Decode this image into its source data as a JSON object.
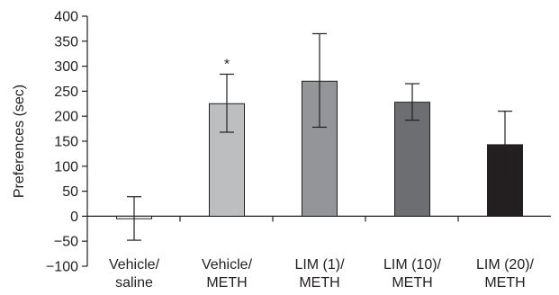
{
  "chart_data": {
    "type": "bar",
    "title": "",
    "xlabel": "",
    "ylabel": "Preferences (sec)",
    "ylim": [
      -100,
      400
    ],
    "yticks": [
      -100,
      -50,
      0,
      50,
      100,
      150,
      200,
      250,
      300,
      350,
      400
    ],
    "yticklabels": [
      "−100",
      "−50",
      "0",
      "50",
      "100",
      "150",
      "200",
      "250",
      "300",
      "350",
      "400"
    ],
    "grid": false,
    "legend": "none",
    "categories": [
      [
        "Vehicle/",
        "saline"
      ],
      [
        "Vehicle/",
        "METH"
      ],
      [
        "LIM (1)/",
        "METH"
      ],
      [
        "LIM (10)/",
        "METH"
      ],
      [
        "LIM (20)/",
        "METH"
      ]
    ],
    "values": [
      -5,
      225,
      270,
      228,
      143
    ],
    "error_low": [
      -48,
      168,
      178,
      192,
      75
    ],
    "error_high": [
      39,
      284,
      365,
      265,
      210
    ],
    "bar_colors": [
      "#ffffff",
      "#bcbec0",
      "#939598",
      "#6d6e71",
      "#231f20"
    ],
    "annotations": [
      "",
      "*",
      "",
      "",
      ""
    ]
  }
}
